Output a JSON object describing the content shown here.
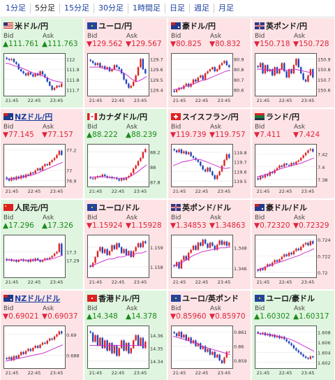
{
  "tabs": [
    "1分足",
    "5分足",
    "15分足",
    "30分足",
    "1時間足",
    "日足",
    "週足",
    "月足"
  ],
  "active_tab": 1,
  "labels": {
    "bid": "Bid",
    "ask": "Ask"
  },
  "colors": {
    "up_bg": "#dff5df",
    "down_bg": "#fde3e5",
    "up_text": "#1a8a1a",
    "down_text": "#e0243c",
    "candle_up": "#dd2222",
    "candle_down": "#2244bb",
    "ma_line": "#cc33cc"
  },
  "cells": [
    {
      "name": "米ドル/円",
      "dir": "up",
      "bid": "▲111.761",
      "ask": "▲111.763",
      "link": false,
      "flag": "us-flag",
      "chart": {
        "x_labels": [
          "21:45",
          "22:45",
          "23:45"
        ],
        "y_labels": [
          "112",
          "111.9",
          "111.8",
          "111.7"
        ],
        "ylim": [
          111.65,
          112.05
        ],
        "closes": [
          112.0,
          111.99,
          112.0,
          111.97,
          111.95,
          111.9,
          111.88,
          111.86,
          111.84,
          111.87,
          111.85,
          111.83,
          111.86,
          111.84,
          111.88,
          111.85,
          111.82,
          111.78,
          111.74,
          111.7,
          111.72,
          111.74,
          111.73,
          111.76
        ],
        "ma": [
          111.96,
          111.95,
          111.93,
          111.92,
          111.9,
          111.88,
          111.86,
          111.85,
          111.83,
          111.81,
          111.79,
          111.78,
          111.77
        ]
      }
    },
    {
      "name": "ユーロ/円",
      "dir": "down",
      "bid": "▼129.562",
      "ask": "▼129.567",
      "link": false,
      "flag": "eu-flag",
      "chart": {
        "x_labels": [
          "21:45",
          "22:45",
          "23:45"
        ],
        "y_labels": [
          "129.7",
          "129.6",
          "129.5",
          "129.4"
        ],
        "ylim": [
          129.35,
          129.75
        ],
        "closes": [
          129.68,
          129.66,
          129.64,
          129.66,
          129.62,
          129.63,
          129.6,
          129.62,
          129.58,
          129.6,
          129.64,
          129.62,
          129.6,
          129.56,
          129.5,
          129.46,
          129.42,
          129.44,
          129.48,
          129.54,
          129.62,
          129.7,
          129.6,
          129.56
        ],
        "ma": [
          129.62,
          129.62,
          129.62,
          129.61,
          129.6,
          129.6,
          129.59,
          129.57,
          129.54,
          129.5,
          129.48,
          129.5,
          129.53
        ]
      }
    },
    {
      "name": "豪ドル/円",
      "dir": "down",
      "bid": "▼80.825",
      "ask": "▼80.832",
      "link": false,
      "flag": "au-flag",
      "chart": {
        "x_labels": [
          "21:45",
          "22:45",
          "23:45"
        ],
        "y_labels": [
          "80.9",
          "80.8",
          "80.7",
          "80.6"
        ],
        "ylim": [
          80.55,
          80.95
        ],
        "closes": [
          80.58,
          80.6,
          80.62,
          80.61,
          80.64,
          80.66,
          80.63,
          80.66,
          80.7,
          80.68,
          80.72,
          80.74,
          80.7,
          80.76,
          80.78,
          80.8,
          80.82,
          80.78,
          80.8,
          80.84,
          80.86,
          80.88,
          80.84,
          80.82
        ],
        "ma": [
          80.6,
          80.61,
          80.62,
          80.64,
          80.65,
          80.67,
          80.69,
          80.7,
          80.72,
          80.74,
          80.76,
          80.78,
          80.79
        ]
      }
    },
    {
      "name": "英ポンド/円",
      "dir": "down",
      "bid": "▼150.718",
      "ask": "▼150.728",
      "link": false,
      "flag": "gb-flag",
      "chart": {
        "x_labels": [
          "21:45",
          "22:45",
          "23:45"
        ],
        "y_labels": [
          "150.9",
          "150.8",
          "150.7",
          "150.6"
        ],
        "ylim": [
          150.55,
          150.95
        ],
        "closes": [
          150.82,
          150.86,
          150.76,
          150.84,
          150.78,
          150.8,
          150.74,
          150.82,
          150.76,
          150.8,
          150.86,
          150.78,
          150.72,
          150.8,
          150.76,
          150.84,
          150.9,
          150.82,
          150.76,
          150.7,
          150.68,
          150.74,
          150.8,
          150.72
        ],
        "ma": [
          150.8,
          150.8,
          150.79,
          150.79,
          150.8,
          150.8,
          150.79,
          150.79,
          150.8,
          150.79,
          150.78,
          150.77,
          150.76
        ]
      }
    },
    {
      "name": "NZドル/円",
      "dir": "down",
      "bid": "▼77.145",
      "ask": "▼77.157",
      "link": true,
      "flag": "nz-flag",
      "chart": {
        "x_labels": [
          "21:45",
          "22:45",
          "23:45"
        ],
        "y_labels": [
          "77.2",
          "77",
          "76.9"
        ],
        "ylim": [
          76.85,
          77.25
        ],
        "closes": [
          76.92,
          76.9,
          76.93,
          76.91,
          76.94,
          76.92,
          76.95,
          76.93,
          76.96,
          76.95,
          76.98,
          76.97,
          77.0,
          77.02,
          77.0,
          77.04,
          77.06,
          77.05,
          77.08,
          77.1,
          77.12,
          77.15,
          77.19,
          77.15
        ],
        "ma": [
          76.91,
          76.92,
          76.92,
          76.93,
          76.94,
          76.95,
          76.96,
          76.98,
          77.0,
          77.02,
          77.04,
          77.06,
          77.08
        ]
      }
    },
    {
      "name": "カナダドル/円",
      "dir": "up",
      "bid": "▲88.222",
      "ask": "▲88.239",
      "link": false,
      "flag": "ca-flag",
      "chart": {
        "x_labels": [
          "21:45",
          "22:45",
          "23:45"
        ],
        "y_labels": [
          "88.2",
          "88",
          "87.8"
        ],
        "ylim": [
          87.75,
          88.3
        ],
        "closes": [
          87.85,
          87.84,
          87.86,
          87.88,
          87.87,
          87.9,
          87.88,
          87.86,
          87.87,
          87.85,
          87.86,
          87.84,
          87.82,
          87.85,
          87.83,
          87.86,
          87.88,
          87.92,
          87.98,
          88.02,
          88.08,
          88.12,
          88.2,
          88.24
        ],
        "ma": [
          87.86,
          87.87,
          87.87,
          87.87,
          87.86,
          87.86,
          87.85,
          87.85,
          87.86,
          87.89,
          87.93,
          87.98,
          88.03
        ]
      }
    },
    {
      "name": "スイスフラン/円",
      "dir": "down",
      "bid": "▼119.739",
      "ask": "▼119.757",
      "link": false,
      "flag": "ch-flag",
      "chart": {
        "x_labels": [
          "21:45",
          "22:45",
          "23:45"
        ],
        "y_labels": [
          "119.8",
          "119.7",
          "119.6",
          "119.5"
        ],
        "ylim": [
          119.45,
          119.88
        ],
        "closes": [
          119.82,
          119.8,
          119.83,
          119.79,
          119.81,
          119.78,
          119.8,
          119.76,
          119.74,
          119.72,
          119.7,
          119.66,
          119.62,
          119.6,
          119.64,
          119.6,
          119.56,
          119.52,
          119.56,
          119.6,
          119.66,
          119.72,
          119.78,
          119.74
        ],
        "ma": [
          119.66,
          119.68,
          119.7,
          119.71,
          119.72,
          119.73,
          119.72,
          119.7,
          119.68,
          119.66,
          119.64,
          119.63,
          119.64
        ]
      }
    },
    {
      "name": "ランド/円",
      "dir": "down",
      "bid": "▼7.411",
      "ask": "▼7.424",
      "link": false,
      "flag": "za-flag",
      "chart": {
        "x_labels": [
          "21:45",
          "22:45",
          "23:45"
        ],
        "y_labels": [
          "7.42",
          "7.4",
          "7.38"
        ],
        "ylim": [
          7.37,
          7.435
        ],
        "closes": [
          7.38,
          7.385,
          7.383,
          7.388,
          7.386,
          7.392,
          7.39,
          7.395,
          7.398,
          7.402,
          7.4,
          7.405,
          7.403,
          7.402,
          7.406,
          7.404,
          7.408,
          7.41,
          7.414,
          7.418,
          7.422,
          7.426,
          7.428,
          7.424
        ],
        "ma": [
          7.384,
          7.386,
          7.388,
          7.391,
          7.394,
          7.397,
          7.399,
          7.401,
          7.403,
          7.405,
          7.408,
          7.411,
          7.414
        ]
      }
    },
    {
      "name": "人民元/円",
      "dir": "up",
      "bid": "▲17.296",
      "ask": "▲17.326",
      "link": false,
      "flag": "cn-flag",
      "chart": {
        "x_labels": [
          "21:45",
          "22:45",
          "23:45"
        ],
        "y_labels": [
          "17.3",
          "17.29"
        ],
        "ylim": [
          17.27,
          17.32
        ],
        "closes": [
          17.29,
          17.291,
          17.289,
          17.29,
          17.288,
          17.29,
          17.291,
          17.289,
          17.29,
          17.288,
          17.291,
          17.289,
          17.292,
          17.29,
          17.288,
          17.29,
          17.292,
          17.291,
          17.293,
          17.295,
          17.298,
          17.3,
          17.31,
          17.296
        ],
        "ma": [
          17.29,
          17.29,
          17.29,
          17.29,
          17.29,
          17.29,
          17.29,
          17.29,
          17.29,
          17.291,
          17.292,
          17.294,
          17.296
        ]
      }
    },
    {
      "name": "ユーロ/ドル",
      "dir": "down",
      "bid": "▼1.15924",
      "ask": "▼1.15928",
      "link": false,
      "flag": "eu-flag",
      "chart": {
        "x_labels": [
          "21:45",
          "22:45",
          "23:45"
        ],
        "y_labels": [
          "1.159",
          "1.158"
        ],
        "ylim": [
          1.1575,
          1.1596
        ],
        "closes": [
          1.158,
          1.1582,
          1.1585,
          1.1588,
          1.159,
          1.1587,
          1.1589,
          1.1586,
          1.1588,
          1.1591,
          1.1589,
          1.1592,
          1.159,
          1.1587,
          1.1589,
          1.1586,
          1.1588,
          1.1585,
          1.1588,
          1.159,
          1.1592,
          1.159,
          1.1593,
          1.1592
        ],
        "ma": [
          1.158,
          1.1581,
          1.1582,
          1.1583,
          1.1584,
          1.1584,
          1.1585,
          1.1585,
          1.1586,
          1.1586,
          1.1587,
          1.1587,
          1.1588
        ]
      }
    },
    {
      "name": "英ポンド/ドル",
      "dir": "down",
      "bid": "▼1.34853",
      "ask": "▼1.34863",
      "link": false,
      "flag": "gb-flag",
      "chart": {
        "x_labels": [
          "21:45",
          "22:45",
          "23:45"
        ],
        "y_labels": [
          "1.348",
          "1.346"
        ],
        "ylim": [
          1.3452,
          1.3492
        ],
        "closes": [
          1.3462,
          1.3466,
          1.346,
          1.3468,
          1.3472,
          1.3468,
          1.3475,
          1.3478,
          1.3482,
          1.3478,
          1.3485,
          1.3482,
          1.3488,
          1.3484,
          1.348,
          1.3485,
          1.3482,
          1.3478,
          1.3483,
          1.3487,
          1.3483,
          1.3486,
          1.3482,
          1.3485
        ],
        "ma": [
          1.3462,
          1.3464,
          1.3466,
          1.3469,
          1.3472,
          1.3474,
          1.3476,
          1.3477,
          1.3478,
          1.3479,
          1.348,
          1.348,
          1.3481
        ]
      }
    },
    {
      "name": "豪ドル/ドル",
      "dir": "down",
      "bid": "▼0.72320",
      "ask": "▼0.72329",
      "link": false,
      "flag": "au-flag",
      "chart": {
        "x_labels": [
          "21:45",
          "22:45",
          "23:45"
        ],
        "y_labels": [
          "0.724",
          "0.722",
          "0.72"
        ],
        "ylim": [
          0.7195,
          0.7245
        ],
        "closes": [
          0.7202,
          0.7205,
          0.7203,
          0.7207,
          0.721,
          0.7208,
          0.7212,
          0.7215,
          0.7213,
          0.7216,
          0.7219,
          0.7222,
          0.722,
          0.7224,
          0.7222,
          0.7226,
          0.7229,
          0.7227,
          0.7231,
          0.7234,
          0.7236,
          0.7233,
          0.7238,
          0.7235
        ],
        "ma": [
          0.7203,
          0.7205,
          0.7207,
          0.7209,
          0.7211,
          0.7213,
          0.7215,
          0.7217,
          0.7219,
          0.7221,
          0.7224,
          0.7226,
          0.7229
        ]
      }
    },
    {
      "name": "NZドル/ドル",
      "dir": "down",
      "bid": "▼0.69021",
      "ask": "▼0.69037",
      "link": true,
      "flag": "nz-flag",
      "chart": {
        "x_labels": [
          "21:45",
          "22:45",
          "23:45"
        ],
        "y_labels": [
          "0.69",
          "0.688"
        ],
        "ylim": [
          0.6868,
          0.6908
        ],
        "closes": [
          0.6876,
          0.6878,
          0.6875,
          0.6879,
          0.6877,
          0.688,
          0.6883,
          0.6881,
          0.6884,
          0.6886,
          0.6884,
          0.6887,
          0.6889,
          0.6887,
          0.689,
          0.6892,
          0.6891,
          0.6894,
          0.6896,
          0.6895,
          0.6898,
          0.69,
          0.6903,
          0.6901
        ],
        "ma": [
          0.6874,
          0.6875,
          0.6876,
          0.6877,
          0.6878,
          0.6879,
          0.688,
          0.6881,
          0.6882,
          0.6884,
          0.6886,
          0.6888,
          0.689
        ]
      }
    },
    {
      "name": "香港ドル/円",
      "dir": "up",
      "bid": "▲14.348",
      "ask": "▲14.378",
      "link": false,
      "flag": "hk-flag",
      "chart": {
        "x_labels": [
          "21:45",
          "22:45",
          "23:45"
        ],
        "y_labels": [
          "14.36",
          "14.35",
          "14.34"
        ],
        "ylim": [
          14.335,
          14.367
        ],
        "closes": [
          14.362,
          14.355,
          14.36,
          14.352,
          14.358,
          14.35,
          14.356,
          14.348,
          14.354,
          14.346,
          14.352,
          14.344,
          14.35,
          14.356,
          14.348,
          14.354,
          14.346,
          14.35,
          14.356,
          14.36,
          14.352,
          14.358,
          14.35,
          14.355
        ],
        "ma": [
          14.352,
          14.352,
          14.352,
          14.352,
          14.352,
          14.352,
          14.352,
          14.352,
          14.352,
          14.352,
          14.352,
          14.352,
          14.352
        ]
      }
    },
    {
      "name": "ユーロ/英ポンド",
      "dir": "down",
      "bid": "▼0.85960",
      "ask": "▼0.85970",
      "link": false,
      "flag": "eu-flag",
      "chart": {
        "x_labels": [
          "21:45",
          "22:45",
          "23:45"
        ],
        "y_labels": [
          "0.861",
          "0.86",
          "0.859"
        ],
        "ylim": [
          0.8585,
          0.8614
        ],
        "closes": [
          0.8609,
          0.8607,
          0.861,
          0.8606,
          0.8608,
          0.8604,
          0.8606,
          0.8602,
          0.8604,
          0.86,
          0.8602,
          0.8598,
          0.86,
          0.8596,
          0.8598,
          0.8594,
          0.8596,
          0.8592,
          0.8594,
          0.859,
          0.8588,
          0.8592,
          0.8596,
          0.8596
        ],
        "ma": [
          0.8607,
          0.8606,
          0.8605,
          0.8604,
          0.8603,
          0.8602,
          0.86,
          0.8599,
          0.8598,
          0.8597,
          0.8596,
          0.8595,
          0.8594
        ]
      }
    },
    {
      "name": "ユーロ/豪ドル",
      "dir": "up",
      "bid": "▲1.60302",
      "ask": "▲1.60317",
      "link": false,
      "flag": "eu-flag",
      "chart": {
        "x_labels": [
          "21:45",
          "22:45",
          "23:45"
        ],
        "y_labels": [
          "1.608",
          "1.606",
          "1.604",
          "1.602"
        ],
        "ylim": [
          1.601,
          1.6092
        ],
        "closes": [
          1.6078,
          1.6076,
          1.6079,
          1.6074,
          1.6077,
          1.6072,
          1.6075,
          1.607,
          1.6073,
          1.6068,
          1.6071,
          1.6066,
          1.6062,
          1.6058,
          1.6054,
          1.6048,
          1.6044,
          1.604,
          1.6036,
          1.6032,
          1.6029,
          1.6027,
          1.6032,
          1.603
        ],
        "ma": [
          1.6078,
          1.6077,
          1.6076,
          1.6075,
          1.6073,
          1.6071,
          1.6069,
          1.6066,
          1.6062,
          1.6057,
          1.6052,
          1.6047,
          1.6042
        ]
      }
    }
  ]
}
